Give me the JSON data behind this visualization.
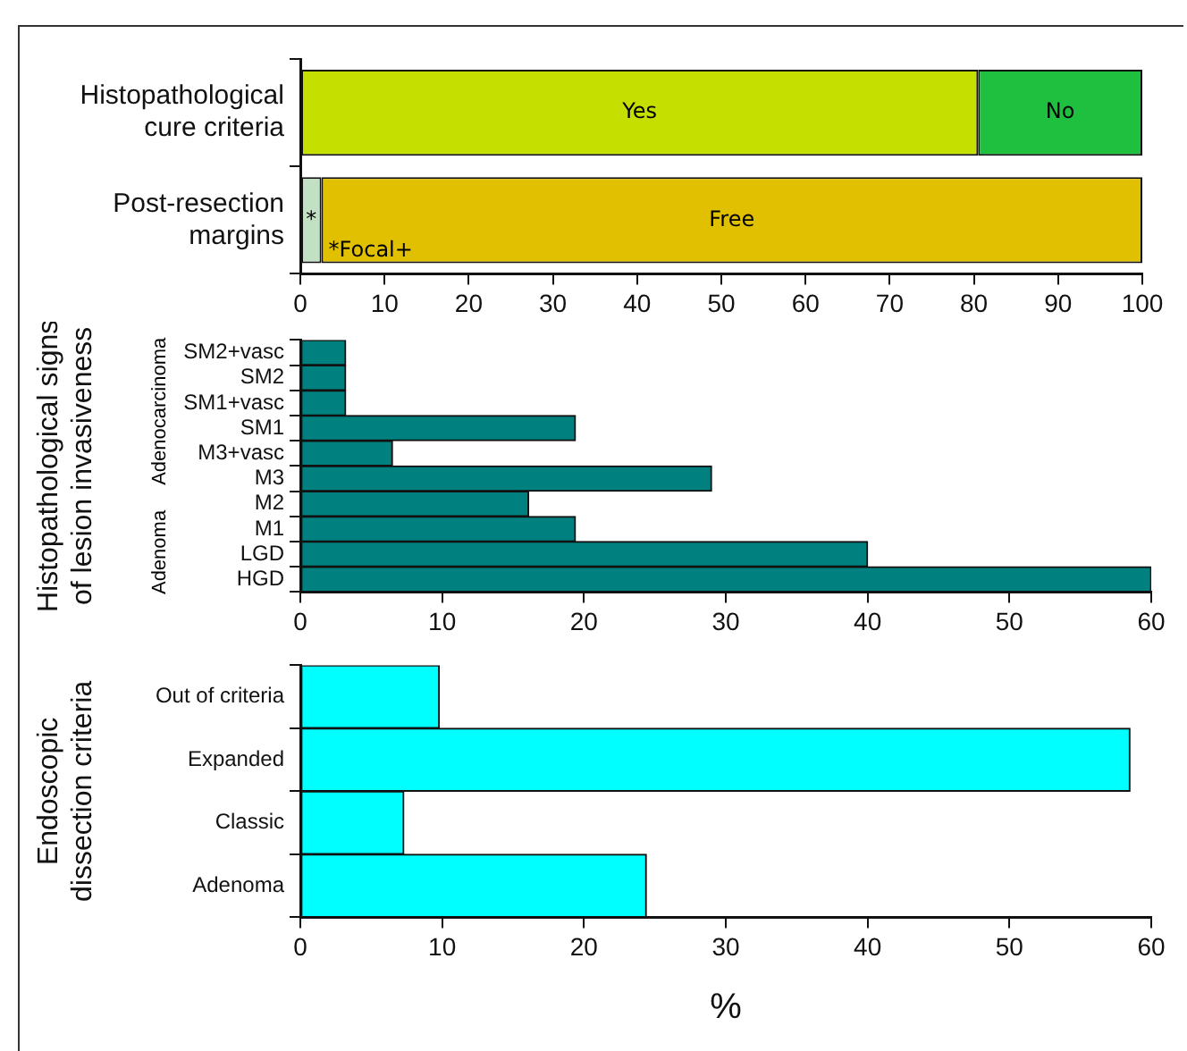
{
  "chart_data": [
    {
      "type": "bar",
      "orientation": "horizontal",
      "stacked": true,
      "categories": [
        "Histopathological\ncure criteria",
        "Post-resection\nmargins"
      ],
      "series": [
        {
          "colors": [
            "#c5e000",
            "#c2e0c4"
          ],
          "values": [
            80.5,
            2.5
          ],
          "value_labels": [
            "Yes",
            "*"
          ]
        },
        {
          "colors": [
            "#1fbf3f",
            "#e0c000"
          ],
          "values": [
            19.5,
            97.5
          ],
          "value_labels": [
            "No",
            "Free"
          ]
        }
      ],
      "xlim": [
        0,
        100
      ],
      "xticks": [
        0,
        10,
        20,
        30,
        40,
        50,
        60,
        70,
        80,
        90,
        100
      ],
      "grid": false,
      "legend": false,
      "annotations": [
        {
          "text": "*Focal+",
          "x": 2.5,
          "y": "Post-resection\nmargins"
        }
      ]
    },
    {
      "type": "bar",
      "orientation": "horizontal",
      "categories": [
        "SM2+vasc",
        "SM2",
        "SM1+vasc",
        "SM1",
        "M3+vasc",
        "M3",
        "M2",
        "M1",
        "LGD",
        "HGD"
      ],
      "values": [
        3.2,
        3.2,
        3.2,
        19.4,
        6.5,
        29,
        16.1,
        19.4,
        40,
        60
      ],
      "color": "#00807f",
      "xlim": [
        0,
        60
      ],
      "xticks": [
        0,
        10,
        20,
        30,
        40,
        50,
        60
      ],
      "grid": false,
      "legend": false,
      "ylabel": "Histopathological signs\nof lesion invasiveness",
      "annotations": [
        "Adenocarcinoma",
        "Adenoma"
      ]
    },
    {
      "type": "bar",
      "orientation": "horizontal",
      "categories": [
        "Out of criteria",
        "Expanded",
        "Classic",
        "Adenoma"
      ],
      "values": [
        9.8,
        58.5,
        7.3,
        24.4
      ],
      "color": "#00ffff",
      "xlim": [
        0,
        60
      ],
      "xticks": [
        0,
        10,
        20,
        30,
        40,
        50,
        60
      ],
      "grid": false,
      "legend": false,
      "ylabel": "Endoscopic\ndissection criteria",
      "xlabel": "%"
    }
  ]
}
